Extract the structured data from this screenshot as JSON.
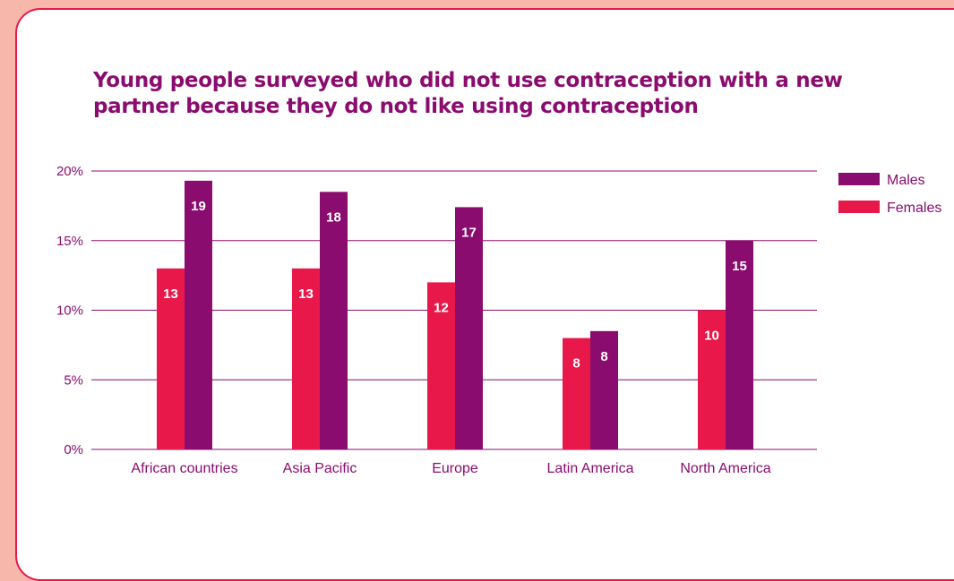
{
  "chart_data": {
    "type": "bar",
    "title": "Young people surveyed who did not use contraception with a new partner because they do not like using contraception",
    "categories": [
      "African countries",
      "Asia Pacific",
      "Europe",
      "Latin America",
      "North America"
    ],
    "series": [
      {
        "name": "Females",
        "color": "#e8194a",
        "values": [
          13,
          13,
          12,
          8,
          10
        ],
        "labels": [
          "13",
          "13",
          "12",
          "8",
          "10"
        ]
      },
      {
        "name": "Males",
        "color": "#8a0c6e",
        "values": [
          19.3,
          18.5,
          17.4,
          8.5,
          15
        ],
        "labels": [
          "19",
          "18",
          "17",
          "8",
          "15"
        ]
      }
    ],
    "legend_order": [
      "Males",
      "Females"
    ],
    "yticks": [
      "0%",
      "5%",
      "10%",
      "15%",
      "20%"
    ],
    "ylim": [
      0,
      20
    ],
    "grid": true,
    "legend": "right"
  }
}
